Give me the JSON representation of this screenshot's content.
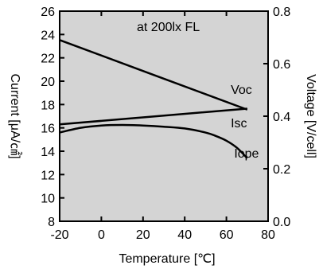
{
  "chart_data": {
    "type": "line",
    "annotation": "at  200lx FL",
    "xlabel": "Temperature [℃]",
    "ylabel_left": "Current [μA/㎠]",
    "ylabel_right": "Voltage [V/cell]",
    "xlim": [
      -20,
      80
    ],
    "ylim_left": [
      8,
      26
    ],
    "ylim_right": [
      0.0,
      0.8
    ],
    "x_ticks": [
      -20,
      0,
      20,
      40,
      60,
      80
    ],
    "x_tick_labels": [
      "-20",
      "0",
      "20",
      "40",
      "60",
      "80"
    ],
    "y_left_ticks": [
      8,
      10,
      12,
      14,
      16,
      18,
      20,
      22,
      24,
      26
    ],
    "y_left_tick_labels": [
      "8",
      "10",
      "12",
      "14",
      "16",
      "18",
      "20",
      "22",
      "24",
      "26"
    ],
    "y_right_ticks": [
      0.0,
      0.2,
      0.4,
      0.6,
      0.8
    ],
    "y_right_tick_labels": [
      "0.0",
      "0.2",
      "0.4",
      "0.6",
      "0.8"
    ],
    "grid": false,
    "colors": {
      "plot_background": "#d4d4d4",
      "line": "#000000"
    },
    "series": [
      {
        "name": "Voc",
        "axis": "right",
        "x": [
          -20,
          70
        ],
        "y": [
          0.69,
          0.425
        ]
      },
      {
        "name": "Isc",
        "axis": "left",
        "x": [
          -20,
          70
        ],
        "y": [
          16.3,
          17.65
        ]
      },
      {
        "name": "Iope",
        "axis": "left",
        "x": [
          -20,
          -10,
          0,
          10,
          20,
          30,
          40,
          50,
          55,
          60,
          65,
          70
        ],
        "y": [
          15.6,
          16.0,
          16.2,
          16.25,
          16.2,
          16.1,
          15.95,
          15.6,
          15.3,
          14.9,
          14.3,
          13.4
        ]
      }
    ]
  }
}
